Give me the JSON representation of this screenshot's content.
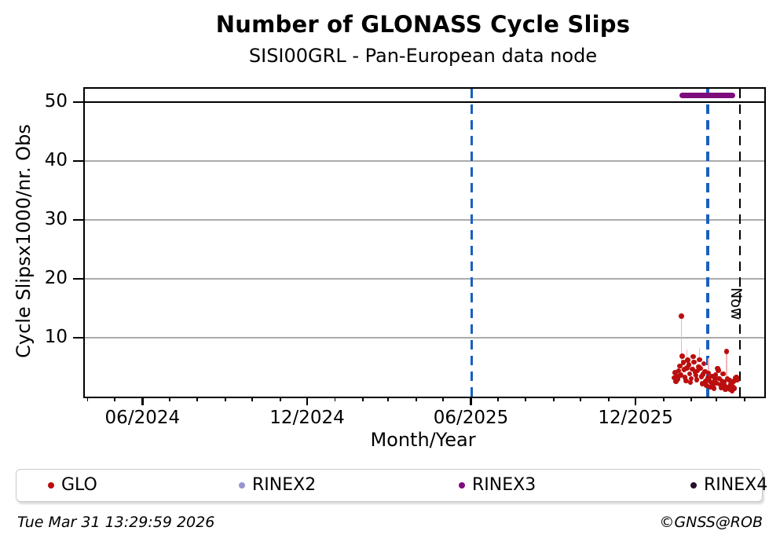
{
  "title": "Number of GLONASS Cycle Slips",
  "subtitle": "SISI00GRL - Pan-European data node",
  "footer": {
    "timestamp": "Tue Mar 31 13:29:59 2026",
    "credit": "©GNSS@ROB"
  },
  "legend": {
    "items": [
      {
        "label": "GLO",
        "color": "#bb0e0e"
      },
      {
        "label": "RINEX2",
        "color": "#9695cf"
      },
      {
        "label": "RINEX3",
        "color": "#7d0c7d"
      },
      {
        "label": "RINEX4",
        "color": "#26102c"
      }
    ]
  },
  "chart_data": {
    "type": "scatter",
    "title": "Number of GLONASS Cycle Slips",
    "subtitle": "SISI00GRL - Pan-European data node",
    "x_label": "Month/Year",
    "y_label": "Cycle Slipsx1000/nr. Obs",
    "x_domain": [
      "2024-03-29",
      "2026-04-23"
    ],
    "ylim": [
      0,
      52.3
    ],
    "y_ticks": [
      10,
      20,
      30,
      40,
      50
    ],
    "x_ticks": [
      {
        "date": "2024-06-01",
        "label": "06/2024"
      },
      {
        "date": "2024-12-01",
        "label": "12/2024"
      },
      {
        "date": "2025-06-01",
        "label": "06/2025"
      },
      {
        "date": "2025-12-01",
        "label": "12/2025"
      }
    ],
    "grid_color": "#ababab",
    "cap_line": {
      "value": 50,
      "color": "#000000",
      "width": 2.5
    },
    "rinex3_segment": {
      "start": "2026-01-19",
      "end": "2026-03-22",
      "value": 51.1,
      "color": "#7d0c7d",
      "thickness": 7
    },
    "vlines": [
      {
        "date": "2025-06-02",
        "color": "#1a5fbe",
        "width": 3.5,
        "label": ""
      },
      {
        "date": "2026-02-19",
        "color": "#1a5fbe",
        "width": 3.5,
        "label": ""
      },
      {
        "date": "2026-03-27",
        "color": "#000000",
        "width": 2.5,
        "label": "Now"
      }
    ],
    "stems": [
      [
        "2026-01-21",
        3.0,
        13.7
      ],
      [
        "2026-01-27",
        4.9,
        8.0
      ],
      [
        "2026-02-03",
        3.5,
        6.8
      ],
      [
        "2026-02-10",
        6.3,
        8.3
      ],
      [
        "2026-02-20",
        4.0,
        6.5
      ],
      [
        "2026-03-12",
        3.5,
        7.7
      ]
    ],
    "stem_color": "#f0b6b6",
    "series": [
      {
        "name": "GLO",
        "color": "#bb0e0e",
        "marker_size": 6.5,
        "points": [
          [
            "2026-01-13",
            3.2
          ],
          [
            "2026-01-14",
            4.1
          ],
          [
            "2026-01-15",
            2.6
          ],
          [
            "2026-01-16",
            3.4
          ],
          [
            "2026-01-17",
            3.0
          ],
          [
            "2026-01-18",
            4.4
          ],
          [
            "2026-01-19",
            5.2
          ],
          [
            "2026-01-20",
            3.7
          ],
          [
            "2026-01-21",
            13.7
          ],
          [
            "2026-01-22",
            6.9
          ],
          [
            "2026-01-23",
            5.8
          ],
          [
            "2026-01-24",
            4.6
          ],
          [
            "2026-01-25",
            3.3
          ],
          [
            "2026-01-26",
            2.7
          ],
          [
            "2026-01-27",
            4.9
          ],
          [
            "2026-01-28",
            6.2
          ],
          [
            "2026-01-29",
            5.4
          ],
          [
            "2026-01-30",
            3.9
          ],
          [
            "2026-01-31",
            2.4
          ],
          [
            "2026-02-01",
            3.1
          ],
          [
            "2026-02-02",
            4.7
          ],
          [
            "2026-02-03",
            6.8
          ],
          [
            "2026-02-04",
            5.9
          ],
          [
            "2026-02-05",
            4.2
          ],
          [
            "2026-02-06",
            3.6
          ],
          [
            "2026-02-07",
            2.9
          ],
          [
            "2026-02-08",
            4.4
          ],
          [
            "2026-02-09",
            5.1
          ],
          [
            "2026-02-10",
            6.3
          ],
          [
            "2026-02-11",
            4.8
          ],
          [
            "2026-02-12",
            3.4
          ],
          [
            "2026-02-13",
            2.2
          ],
          [
            "2026-02-14",
            3.8
          ],
          [
            "2026-02-15",
            5.6
          ],
          [
            "2026-02-16",
            4.3
          ],
          [
            "2026-02-17",
            2.6
          ],
          [
            "2026-02-18",
            1.9
          ],
          [
            "2026-02-19",
            3.2
          ],
          [
            "2026-02-20",
            4.0
          ],
          [
            "2026-02-21",
            2.8
          ],
          [
            "2026-02-22",
            1.6
          ],
          [
            "2026-02-23",
            2.4
          ],
          [
            "2026-02-24",
            3.5
          ],
          [
            "2026-02-25",
            2.1
          ],
          [
            "2026-02-26",
            1.4
          ],
          [
            "2026-02-27",
            2.9
          ],
          [
            "2026-02-28",
            3.7
          ],
          [
            "2026-03-01",
            2.3
          ],
          [
            "2026-03-02",
            4.8
          ],
          [
            "2026-03-03",
            4.5
          ],
          [
            "2026-03-04",
            3.1
          ],
          [
            "2026-03-05",
            2.0
          ],
          [
            "2026-03-06",
            1.5
          ],
          [
            "2026-03-07",
            2.7
          ],
          [
            "2026-03-08",
            3.9
          ],
          [
            "2026-03-09",
            2.5
          ],
          [
            "2026-03-10",
            1.8
          ],
          [
            "2026-03-11",
            1.2
          ],
          [
            "2026-03-12",
            7.7
          ],
          [
            "2026-03-13",
            3.0
          ],
          [
            "2026-03-14",
            1.6
          ],
          [
            "2026-03-15",
            2.8
          ],
          [
            "2026-03-16",
            1.3
          ],
          [
            "2026-03-17",
            2.1
          ],
          [
            "2026-03-18",
            1.0
          ],
          [
            "2026-03-19",
            1.7
          ],
          [
            "2026-03-20",
            2.6
          ],
          [
            "2026-03-21",
            1.4
          ],
          [
            "2026-03-22",
            3.2
          ],
          [
            "2026-03-23",
            3.3
          ],
          [
            "2026-03-24",
            2.9
          ]
        ]
      }
    ]
  }
}
